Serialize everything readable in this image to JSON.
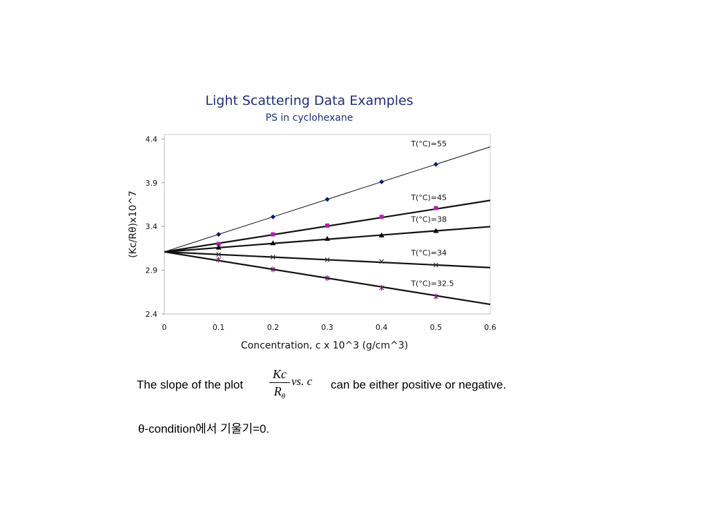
{
  "chart_data": {
    "type": "line",
    "title": "Light Scattering Data Examples",
    "subtitle": "PS in cyclohexane",
    "xlabel": "Concentration, c x 10^3 (g/cm^3)",
    "ylabel": "(Kc/Rθ)x10^7",
    "xlim": [
      0,
      0.6
    ],
    "ylim": [
      2.4,
      4.45
    ],
    "x_ticks": [
      "0",
      "0.1",
      "0.2",
      "0.3",
      "0.4",
      "0.5",
      "0.6"
    ],
    "y_ticks": [
      "4.4",
      "3.9",
      "3.4",
      "2.9",
      "2.4"
    ],
    "grid": false,
    "series": [
      {
        "name": "T(°C)=55",
        "marker": "diamond",
        "color": "#0a1a6b",
        "x": [
          0.1,
          0.2,
          0.3,
          0.4,
          0.5
        ],
        "y": [
          3.31,
          3.51,
          3.71,
          3.91,
          4.11
        ],
        "intercept": 3.11,
        "slope": 2.0
      },
      {
        "name": "T(°C)=45",
        "marker": "square",
        "color": "#b020b0",
        "x": [
          0.1,
          0.2,
          0.3,
          0.4,
          0.5
        ],
        "y": [
          3.2,
          3.31,
          3.41,
          3.51,
          3.61
        ],
        "intercept": 3.11,
        "slope": 0.98
      },
      {
        "name": "T(°C)=38",
        "marker": "triangle",
        "color": "#000000",
        "x": [
          0.1,
          0.2,
          0.3,
          0.4,
          0.5
        ],
        "y": [
          3.16,
          3.21,
          3.26,
          3.3,
          3.35
        ],
        "intercept": 3.11,
        "slope": 0.48
      },
      {
        "name": "T(°C)=34",
        "marker": "x",
        "color": "#333333",
        "x": [
          0.1,
          0.2,
          0.3,
          0.4,
          0.5
        ],
        "y": [
          3.08,
          3.05,
          3.02,
          3.0,
          2.96
        ],
        "intercept": 3.11,
        "slope": -0.3
      },
      {
        "name": "T(°C)=32.5",
        "marker": "star",
        "color": "#7a1a6a",
        "x": [
          0.1,
          0.2,
          0.3,
          0.4,
          0.5
        ],
        "y": [
          3.02,
          2.91,
          2.81,
          2.7,
          2.6
        ],
        "intercept": 3.11,
        "slope": -1.0
      }
    ]
  },
  "caption": {
    "line1_before": "The slope of the plot",
    "frac_num": "Kc",
    "frac_den": "R",
    "frac_den_sub": "θ",
    "vs": "vs. c",
    "line1_after": "can be either positive or negative.",
    "line2": "θ-condition에서 기울기=0."
  }
}
